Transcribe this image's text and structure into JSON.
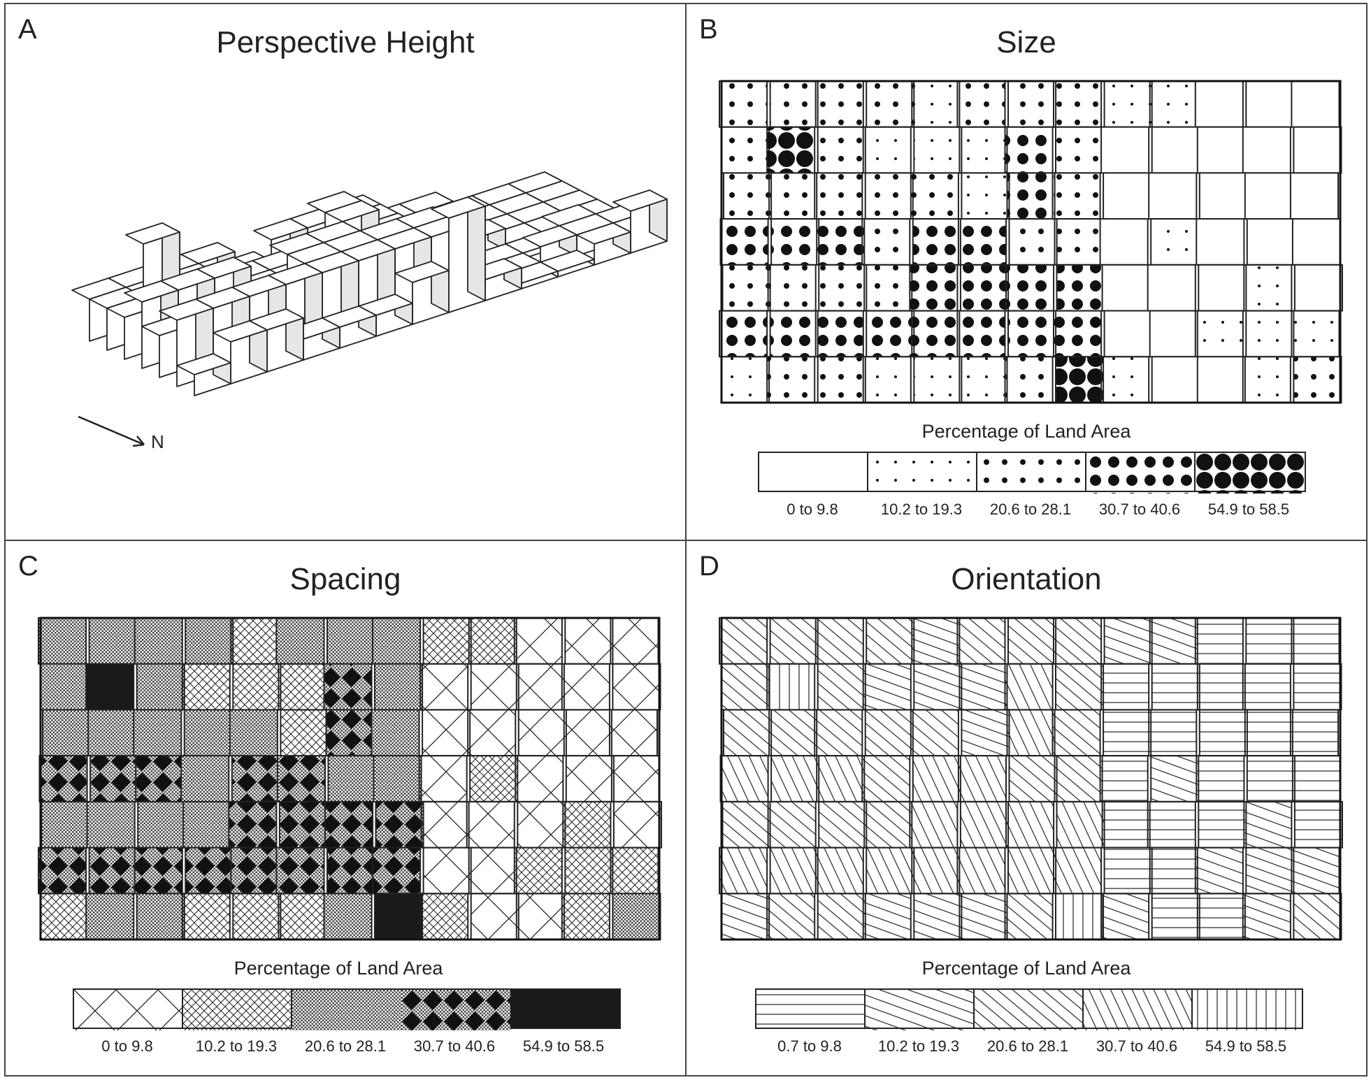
{
  "panels": {
    "a": {
      "letter": "A",
      "title": "Perspective Height",
      "north_label": "N"
    },
    "b": {
      "letter": "B",
      "title": "Size",
      "legend_title": "Percentage of Land Area"
    },
    "c": {
      "letter": "C",
      "title": "Spacing",
      "legend_title": "Percentage of Land Area"
    },
    "d": {
      "letter": "D",
      "title": "Orientation",
      "legend_title": "Percentage of Land Area"
    }
  },
  "legend_classes": [
    "0 to 9.8",
    "10.2 to 19.3",
    "20.6 to 28.1",
    "30.7 to 40.6",
    "54.9 to 58.5"
  ],
  "legend_classes_orientation": [
    "0.7 to 9.8",
    "10.2 to 19.3",
    "20.6 to 28.1",
    "30.7 to 40.6",
    "54.9 to 58.5"
  ],
  "county_classes": [
    [
      2,
      2,
      2,
      2,
      1,
      2,
      2,
      2,
      1,
      1,
      0,
      0,
      0
    ],
    [
      2,
      4,
      2,
      1,
      1,
      1,
      3,
      2,
      0,
      0,
      0,
      0,
      0
    ],
    [
      2,
      2,
      2,
      2,
      2,
      1,
      3,
      2,
      0,
      0,
      0,
      0,
      0
    ],
    [
      3,
      3,
      3,
      2,
      3,
      3,
      2,
      2,
      0,
      1,
      0,
      0,
      0
    ],
    [
      2,
      2,
      2,
      2,
      3,
      3,
      3,
      3,
      0,
      0,
      0,
      1,
      0
    ],
    [
      3,
      3,
      3,
      3,
      3,
      3,
      3,
      3,
      0,
      0,
      1,
      1,
      1
    ],
    [
      1,
      2,
      2,
      1,
      1,
      1,
      2,
      4,
      1,
      0,
      0,
      1,
      2
    ]
  ],
  "colors": {
    "ink": "#222222",
    "face_top": "#ffffff",
    "face_side": "#e6e6e6",
    "panel_border": "#444444"
  }
}
